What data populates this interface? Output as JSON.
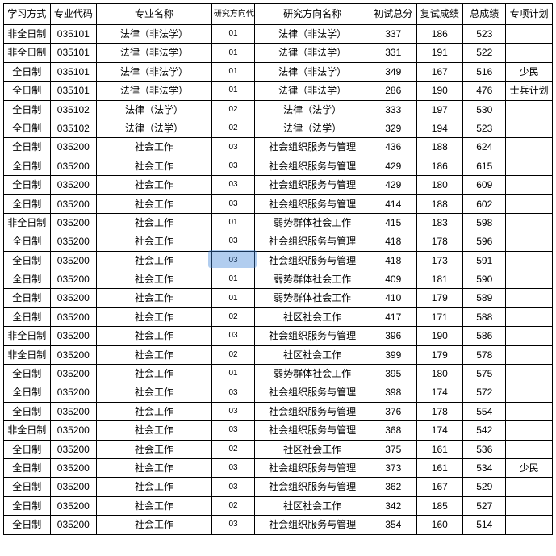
{
  "columns": [
    "学习方式",
    "专业代码",
    "专业名称",
    "研究方向代码",
    "研究方向名称",
    "初试总分",
    "复试成绩",
    "总成绩",
    "专项计划"
  ],
  "rows": [
    [
      "非全日制",
      "035101",
      "法律（非法学）",
      "01",
      "法律（非法学）",
      "337",
      "186",
      "523",
      ""
    ],
    [
      "非全日制",
      "035101",
      "法律（非法学）",
      "01",
      "法律（非法学）",
      "331",
      "191",
      "522",
      ""
    ],
    [
      "全日制",
      "035101",
      "法律（非法学）",
      "01",
      "法律（非法学）",
      "349",
      "167",
      "516",
      "少民"
    ],
    [
      "全日制",
      "035101",
      "法律（非法学）",
      "01",
      "法律（非法学）",
      "286",
      "190",
      "476",
      "士兵计划"
    ],
    [
      "全日制",
      "035102",
      "法律（法学）",
      "02",
      "法律（法学）",
      "333",
      "197",
      "530",
      ""
    ],
    [
      "全日制",
      "035102",
      "法律（法学）",
      "02",
      "法律（法学）",
      "329",
      "194",
      "523",
      ""
    ],
    [
      "全日制",
      "035200",
      "社会工作",
      "03",
      "社会组织服务与管理",
      "436",
      "188",
      "624",
      ""
    ],
    [
      "全日制",
      "035200",
      "社会工作",
      "03",
      "社会组织服务与管理",
      "429",
      "186",
      "615",
      ""
    ],
    [
      "全日制",
      "035200",
      "社会工作",
      "03",
      "社会组织服务与管理",
      "429",
      "180",
      "609",
      ""
    ],
    [
      "全日制",
      "035200",
      "社会工作",
      "03",
      "社会组织服务与管理",
      "414",
      "188",
      "602",
      ""
    ],
    [
      "非全日制",
      "035200",
      "社会工作",
      "01",
      "弱势群体社会工作",
      "415",
      "183",
      "598",
      ""
    ],
    [
      "全日制",
      "035200",
      "社会工作",
      "03",
      "社会组织服务与管理",
      "418",
      "178",
      "596",
      ""
    ],
    [
      "全日制",
      "035200",
      "社会工作",
      "03",
      "社会组织服务与管理",
      "418",
      "173",
      "591",
      ""
    ],
    [
      "全日制",
      "035200",
      "社会工作",
      "01",
      "弱势群体社会工作",
      "409",
      "181",
      "590",
      ""
    ],
    [
      "全日制",
      "035200",
      "社会工作",
      "01",
      "弱势群体社会工作",
      "410",
      "179",
      "589",
      ""
    ],
    [
      "全日制",
      "035200",
      "社会工作",
      "02",
      "社区社会工作",
      "417",
      "171",
      "588",
      ""
    ],
    [
      "非全日制",
      "035200",
      "社会工作",
      "03",
      "社会组织服务与管理",
      "396",
      "190",
      "586",
      ""
    ],
    [
      "非全日制",
      "035200",
      "社会工作",
      "02",
      "社区社会工作",
      "399",
      "179",
      "578",
      ""
    ],
    [
      "全日制",
      "035200",
      "社会工作",
      "01",
      "弱势群体社会工作",
      "395",
      "180",
      "575",
      ""
    ],
    [
      "全日制",
      "035200",
      "社会工作",
      "03",
      "社会组织服务与管理",
      "398",
      "174",
      "572",
      ""
    ],
    [
      "全日制",
      "035200",
      "社会工作",
      "03",
      "社会组织服务与管理",
      "376",
      "178",
      "554",
      ""
    ],
    [
      "非全日制",
      "035200",
      "社会工作",
      "03",
      "社会组织服务与管理",
      "368",
      "174",
      "542",
      ""
    ],
    [
      "全日制",
      "035200",
      "社会工作",
      "02",
      "社区社会工作",
      "375",
      "161",
      "536",
      ""
    ],
    [
      "全日制",
      "035200",
      "社会工作",
      "03",
      "社会组织服务与管理",
      "373",
      "161",
      "534",
      "少民"
    ],
    [
      "全日制",
      "035200",
      "社会工作",
      "03",
      "社会组织服务与管理",
      "362",
      "167",
      "529",
      ""
    ],
    [
      "全日制",
      "035200",
      "社会工作",
      "02",
      "社区社会工作",
      "342",
      "185",
      "527",
      ""
    ],
    [
      "全日制",
      "035200",
      "社会工作",
      "03",
      "社会组织服务与管理",
      "354",
      "160",
      "514",
      ""
    ]
  ],
  "col_classes": [
    "col-study",
    "col-major-code",
    "col-major-name",
    "col-dir-code",
    "col-dir-name",
    "col-init",
    "col-retest",
    "col-total",
    "col-plan"
  ]
}
